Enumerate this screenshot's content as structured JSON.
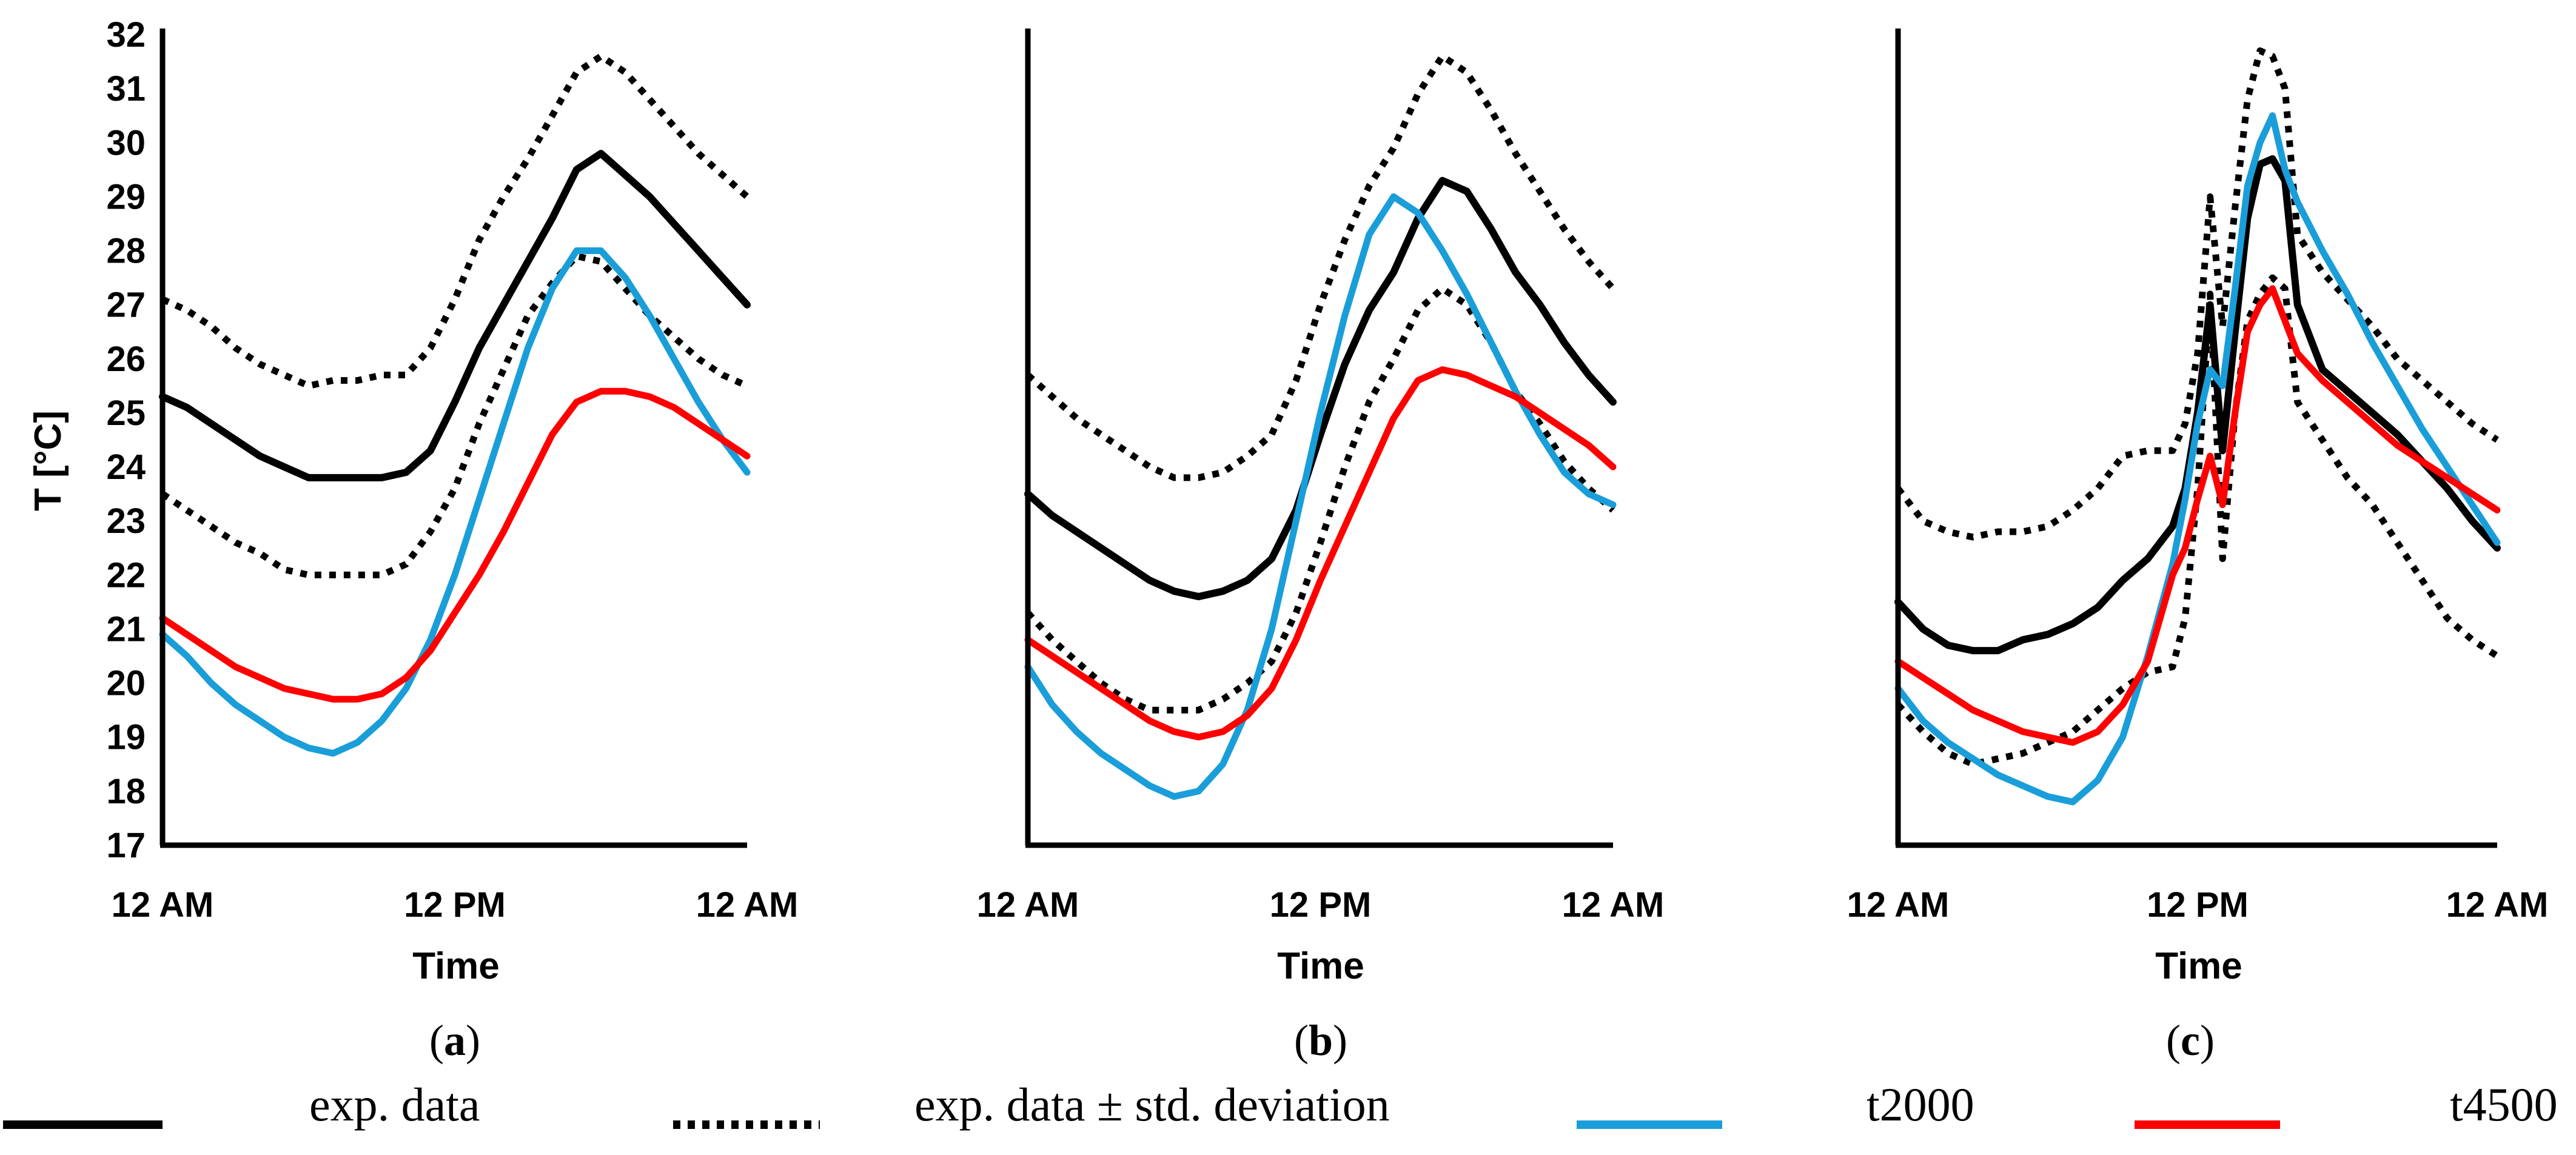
{
  "chart_data": [
    {
      "type": "line",
      "panel": "a",
      "xlabel": "Time",
      "ylabel": "T [°C]",
      "ylim": [
        17,
        32
      ],
      "yticks": [
        17,
        18,
        19,
        20,
        21,
        22,
        23,
        24,
        25,
        26,
        27,
        28,
        29,
        30,
        31,
        32
      ],
      "xlim": [
        0,
        24
      ],
      "xticks": [
        0,
        12,
        24
      ],
      "xtick_labels": [
        "12 AM",
        "12 PM",
        "12 AM"
      ],
      "series": [
        {
          "name": "exp. data",
          "x": [
            0,
            1,
            2,
            3,
            4,
            5,
            6,
            7,
            8,
            9,
            10,
            11,
            12,
            13,
            14,
            15,
            16,
            17,
            18,
            19,
            20,
            21,
            22,
            23,
            24
          ],
          "values": [
            25.3,
            25.1,
            24.8,
            24.5,
            24.2,
            24.0,
            23.8,
            23.8,
            23.8,
            23.8,
            23.9,
            24.3,
            25.2,
            26.2,
            27.0,
            27.8,
            28.6,
            29.5,
            29.8,
            29.4,
            29.0,
            28.5,
            28.0,
            27.5,
            27.0
          ]
        },
        {
          "name": "exp. data + std. deviation",
          "x": [
            0,
            1,
            2,
            3,
            4,
            5,
            6,
            7,
            8,
            9,
            10,
            11,
            12,
            13,
            14,
            15,
            16,
            17,
            18,
            19,
            20,
            21,
            22,
            23,
            24
          ],
          "values": [
            27.1,
            26.9,
            26.6,
            26.2,
            25.9,
            25.7,
            25.5,
            25.6,
            25.6,
            25.7,
            25.7,
            26.2,
            27.1,
            28.2,
            29.0,
            29.7,
            30.5,
            31.3,
            31.6,
            31.3,
            30.8,
            30.3,
            29.8,
            29.4,
            29.0
          ]
        },
        {
          "name": "exp. data - std. deviation",
          "x": [
            0,
            1,
            2,
            3,
            4,
            5,
            6,
            7,
            8,
            9,
            10,
            11,
            12,
            13,
            14,
            15,
            16,
            17,
            18,
            19,
            20,
            21,
            22,
            23,
            24
          ],
          "values": [
            23.5,
            23.2,
            22.9,
            22.6,
            22.4,
            22.1,
            22.0,
            22.0,
            22.0,
            22.0,
            22.2,
            22.8,
            23.6,
            24.8,
            25.8,
            26.8,
            27.4,
            27.9,
            27.8,
            27.3,
            26.8,
            26.4,
            26.0,
            25.7,
            25.5
          ]
        },
        {
          "name": "t2000",
          "x": [
            0,
            1,
            2,
            3,
            4,
            5,
            6,
            7,
            8,
            9,
            10,
            11,
            12,
            13,
            14,
            15,
            16,
            17,
            18,
            19,
            20,
            21,
            22,
            23,
            24
          ],
          "values": [
            20.9,
            20.5,
            20.0,
            19.6,
            19.3,
            19.0,
            18.8,
            18.7,
            18.9,
            19.3,
            19.9,
            20.8,
            22.0,
            23.4,
            24.8,
            26.2,
            27.3,
            28.0,
            28.0,
            27.5,
            26.8,
            26.0,
            25.2,
            24.5,
            23.9
          ]
        },
        {
          "name": "t4500",
          "x": [
            0,
            1,
            2,
            3,
            4,
            5,
            6,
            7,
            8,
            9,
            10,
            11,
            12,
            13,
            14,
            15,
            16,
            17,
            18,
            19,
            20,
            21,
            22,
            23,
            24
          ],
          "values": [
            21.2,
            20.9,
            20.6,
            20.3,
            20.1,
            19.9,
            19.8,
            19.7,
            19.7,
            19.8,
            20.1,
            20.6,
            21.3,
            22.0,
            22.8,
            23.7,
            24.6,
            25.2,
            25.4,
            25.4,
            25.3,
            25.1,
            24.8,
            24.5,
            24.2
          ]
        }
      ]
    },
    {
      "type": "line",
      "panel": "b",
      "xlabel": "Time",
      "ylim": [
        17,
        32
      ],
      "xlim": [
        0,
        24
      ],
      "xticks": [
        0,
        12,
        24
      ],
      "xtick_labels": [
        "12 AM",
        "12 PM",
        "12 AM"
      ],
      "series": [
        {
          "name": "exp. data",
          "x": [
            0,
            1,
            2,
            3,
            4,
            5,
            6,
            7,
            8,
            9,
            10,
            11,
            12,
            13,
            14,
            15,
            16,
            17,
            18,
            19,
            20,
            21,
            22,
            23,
            24
          ],
          "values": [
            23.5,
            23.1,
            22.8,
            22.5,
            22.2,
            21.9,
            21.7,
            21.6,
            21.7,
            21.9,
            22.3,
            23.2,
            24.6,
            25.9,
            26.9,
            27.6,
            28.6,
            29.3,
            29.1,
            28.4,
            27.6,
            27.0,
            26.3,
            25.7,
            25.2
          ]
        },
        {
          "name": "exp. data + std. deviation",
          "x": [
            0,
            1,
            2,
            3,
            4,
            5,
            6,
            7,
            8,
            9,
            10,
            11,
            12,
            13,
            14,
            15,
            16,
            17,
            18,
            19,
            20,
            21,
            22,
            23,
            24
          ],
          "values": [
            25.7,
            25.3,
            24.9,
            24.6,
            24.3,
            24.0,
            23.8,
            23.8,
            23.9,
            24.2,
            24.6,
            25.6,
            27.0,
            28.2,
            29.2,
            29.9,
            30.9,
            31.6,
            31.3,
            30.6,
            29.8,
            29.1,
            28.4,
            27.8,
            27.3
          ]
        },
        {
          "name": "exp. data - std. deviation",
          "x": [
            0,
            1,
            2,
            3,
            4,
            5,
            6,
            7,
            8,
            9,
            10,
            11,
            12,
            13,
            14,
            15,
            16,
            17,
            18,
            19,
            20,
            21,
            22,
            23,
            24
          ],
          "values": [
            21.3,
            20.8,
            20.4,
            20.0,
            19.7,
            19.5,
            19.5,
            19.5,
            19.7,
            20.0,
            20.4,
            21.3,
            22.6,
            24.0,
            25.2,
            26.0,
            26.9,
            27.3,
            27.0,
            26.3,
            25.4,
            24.8,
            24.1,
            23.6,
            23.2
          ]
        },
        {
          "name": "t2000",
          "x": [
            0,
            1,
            2,
            3,
            4,
            5,
            6,
            7,
            8,
            9,
            10,
            11,
            12,
            13,
            14,
            15,
            16,
            17,
            18,
            19,
            20,
            21,
            22,
            23,
            24
          ],
          "values": [
            20.3,
            19.6,
            19.1,
            18.7,
            18.4,
            18.1,
            17.9,
            18.0,
            18.5,
            19.5,
            21.0,
            23.0,
            25.0,
            26.8,
            28.3,
            29.0,
            28.7,
            28.0,
            27.2,
            26.3,
            25.4,
            24.6,
            23.9,
            23.5,
            23.3
          ]
        },
        {
          "name": "t4500",
          "x": [
            0,
            1,
            2,
            3,
            4,
            5,
            6,
            7,
            8,
            9,
            10,
            11,
            12,
            13,
            14,
            15,
            16,
            17,
            18,
            19,
            20,
            21,
            22,
            23,
            24
          ],
          "values": [
            20.8,
            20.5,
            20.2,
            19.9,
            19.6,
            19.3,
            19.1,
            19.0,
            19.1,
            19.4,
            19.9,
            20.8,
            21.9,
            22.9,
            23.9,
            24.9,
            25.6,
            25.8,
            25.7,
            25.5,
            25.3,
            25.0,
            24.7,
            24.4,
            24.0
          ]
        }
      ]
    },
    {
      "type": "line",
      "panel": "c",
      "xlabel": "Time",
      "ylim": [
        17,
        32
      ],
      "xlim": [
        0,
        24
      ],
      "xticks": [
        0,
        12,
        24
      ],
      "xtick_labels": [
        "12 AM",
        "12 PM",
        "12 AM"
      ],
      "series": [
        {
          "name": "exp. data",
          "x": [
            0,
            1,
            2,
            3,
            4,
            5,
            6,
            7,
            8,
            9,
            10,
            11,
            11.5,
            12,
            12.5,
            13,
            13.5,
            14,
            14.5,
            15,
            15.5,
            16,
            17,
            18,
            19,
            20,
            21,
            22,
            23,
            24
          ],
          "values": [
            21.5,
            21.0,
            20.7,
            20.6,
            20.6,
            20.8,
            20.9,
            21.1,
            21.4,
            21.9,
            22.3,
            22.9,
            23.6,
            25.0,
            27.0,
            24.3,
            26.5,
            28.6,
            29.6,
            29.7,
            29.3,
            27.0,
            25.8,
            25.4,
            25.0,
            24.6,
            24.1,
            23.6,
            23.0,
            22.5
          ]
        },
        {
          "name": "exp. data + std. deviation",
          "x": [
            0,
            1,
            2,
            3,
            4,
            5,
            6,
            7,
            8,
            9,
            10,
            11,
            11.5,
            12,
            12.5,
            13,
            13.5,
            14,
            14.5,
            15,
            15.5,
            16,
            17,
            18,
            19,
            20,
            21,
            22,
            23,
            24
          ],
          "values": [
            23.6,
            23.0,
            22.8,
            22.7,
            22.8,
            22.8,
            22.9,
            23.2,
            23.6,
            24.2,
            24.3,
            24.3,
            24.8,
            26.1,
            29.0,
            26.6,
            28.8,
            30.8,
            31.7,
            31.6,
            31.0,
            28.3,
            27.6,
            27.1,
            26.6,
            26.0,
            25.6,
            25.2,
            24.8,
            24.5
          ]
        },
        {
          "name": "exp. data - std. deviation",
          "x": [
            0,
            1,
            2,
            3,
            4,
            5,
            6,
            7,
            8,
            9,
            10,
            11,
            11.5,
            12,
            12.5,
            13,
            13.5,
            14,
            14.5,
            15,
            15.5,
            16,
            17,
            18,
            19,
            20,
            21,
            22,
            23,
            24
          ],
          "values": [
            19.6,
            19.1,
            18.7,
            18.5,
            18.6,
            18.7,
            18.9,
            19.1,
            19.5,
            19.9,
            20.2,
            20.3,
            21.2,
            23.6,
            27.2,
            22.3,
            25.0,
            26.7,
            27.2,
            27.5,
            27.3,
            25.2,
            24.5,
            23.8,
            23.3,
            22.6,
            21.9,
            21.2,
            20.8,
            20.5
          ]
        },
        {
          "name": "t2000",
          "x": [
            0,
            1,
            2,
            3,
            4,
            5,
            6,
            7,
            8,
            9,
            10,
            11,
            11.5,
            12,
            12.5,
            13,
            13.5,
            14,
            14.5,
            15,
            15.5,
            16,
            17,
            18,
            19,
            20,
            21,
            22,
            23,
            24
          ],
          "values": [
            19.9,
            19.3,
            18.9,
            18.6,
            18.3,
            18.1,
            17.9,
            17.8,
            18.2,
            19.0,
            20.5,
            22.2,
            23.4,
            24.8,
            25.8,
            25.5,
            27.3,
            29.2,
            30.0,
            30.5,
            29.5,
            28.9,
            28.0,
            27.2,
            26.3,
            25.5,
            24.7,
            24.0,
            23.3,
            22.6
          ]
        },
        {
          "name": "t4500",
          "x": [
            0,
            1,
            2,
            3,
            4,
            5,
            6,
            7,
            8,
            9,
            10,
            11,
            11.5,
            12,
            12.5,
            13,
            13.5,
            14,
            14.5,
            15,
            15.5,
            16,
            17,
            18,
            19,
            20,
            21,
            22,
            23,
            24
          ],
          "values": [
            20.4,
            20.1,
            19.8,
            19.5,
            19.3,
            19.1,
            19.0,
            18.9,
            19.1,
            19.6,
            20.4,
            22.0,
            22.5,
            23.4,
            24.2,
            23.3,
            25.0,
            26.5,
            27.0,
            27.3,
            26.7,
            26.1,
            25.6,
            25.2,
            24.8,
            24.4,
            24.1,
            23.8,
            23.5,
            23.2
          ]
        }
      ]
    }
  ],
  "panels": {
    "a": {
      "label_open": "(",
      "letter": "a",
      "label_close": ")"
    },
    "b": {
      "label_open": "(",
      "letter": "b",
      "label_close": ")"
    },
    "c": {
      "label_open": "(",
      "letter": "c",
      "label_close": ")"
    }
  },
  "legend": {
    "items": [
      {
        "label": "exp. data",
        "style": "solid",
        "color": "#000000"
      },
      {
        "label": "exp. data ± std. deviation",
        "style": "dotted",
        "color": "#000000"
      },
      {
        "label": "t2000",
        "style": "solid",
        "color": "#1a9ed9"
      },
      {
        "label": "t4500",
        "style": "solid",
        "color": "#ff0000"
      }
    ]
  },
  "colors": {
    "exp": "#000000",
    "t2000": "#1a9ed9",
    "t4500": "#ff0000"
  }
}
